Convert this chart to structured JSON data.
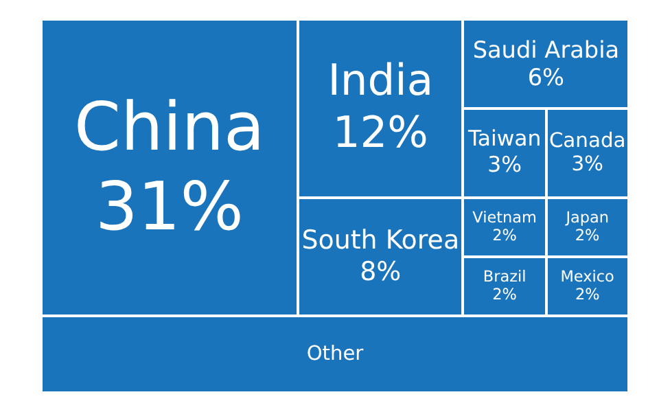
{
  "chart_data": {
    "type": "other",
    "categories": [
      "China",
      "Other",
      "India",
      "South Korea",
      "Saudi Arabia",
      "Taiwan",
      "Canada",
      "Vietnam",
      "Brazil",
      "Japan",
      "Mexico"
    ],
    "values": [
      31,
      null,
      12,
      8,
      6,
      3,
      3,
      2,
      2,
      2,
      2
    ],
    "value_labels": [
      "31%",
      null,
      "12%",
      "8%",
      "6%",
      "3%",
      "3%",
      "2%",
      "2%",
      "2%",
      "2%"
    ],
    "color": "#1a74bb"
  }
}
